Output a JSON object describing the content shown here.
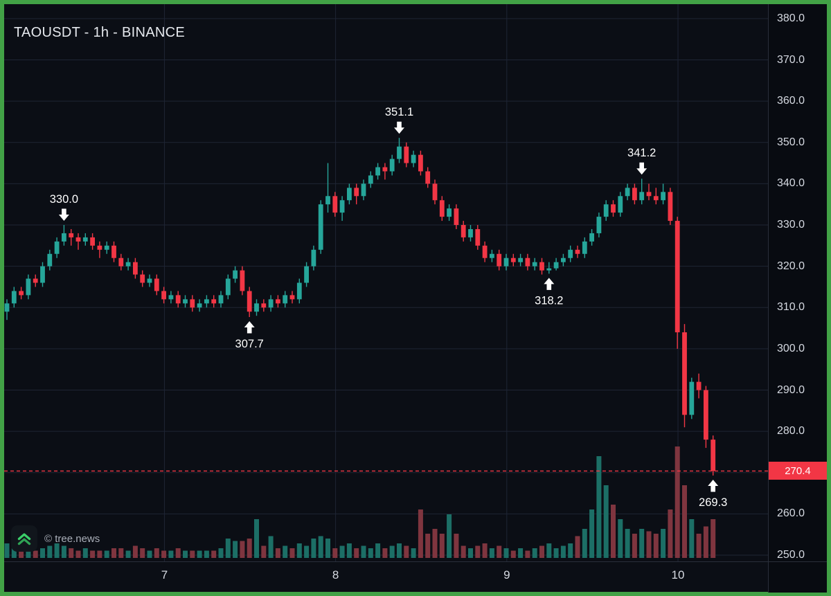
{
  "header": {
    "title": "TAOUSDT - 1h - BINANCE"
  },
  "watermark": {
    "text": "© tree.news",
    "logo": "tree-news-double-chevron-up-icon"
  },
  "colors": {
    "frame": "#42a246",
    "background": "#0b0e15",
    "grid": "#1f2535",
    "up": "#26a69a",
    "down": "#f23645",
    "vol_up": "#1c6f66",
    "vol_down": "#7f353f",
    "axis_text": "#d6dae2",
    "annotation": "#ffffff",
    "current_price_bg": "#f23645"
  },
  "price_axis": {
    "labels": [
      "380.0",
      "370.0",
      "360.0",
      "350.0",
      "340.0",
      "330.0",
      "320.0",
      "310.0",
      "300.0",
      "290.0",
      "280.0",
      "270.0",
      "260.0",
      "250.0"
    ],
    "current_price_label": "270.4"
  },
  "time_axis": {
    "labels": [
      {
        "text": "7",
        "day": 7
      },
      {
        "text": "8",
        "day": 8
      },
      {
        "text": "9",
        "day": 9
      },
      {
        "text": "10",
        "day": 10
      }
    ]
  },
  "annotations": [
    {
      "text": "330.0",
      "index": 8,
      "dir": "down"
    },
    {
      "text": "307.7",
      "index": 34,
      "dir": "up"
    },
    {
      "text": "351.1",
      "index": 55,
      "dir": "down"
    },
    {
      "text": "318.2",
      "index": 76,
      "dir": "up"
    },
    {
      "text": "341.2",
      "index": 89,
      "dir": "down"
    },
    {
      "text": "269.3",
      "index": 99,
      "dir": "up"
    }
  ],
  "chart_data": {
    "type": "candlestick",
    "title": "TAOUSDT - 1h - BINANCE",
    "symbol": "TAOUSDT",
    "interval": "1h",
    "exchange": "BINANCE",
    "price_axis_range": [
      250,
      380
    ],
    "x_day_start": 6.08,
    "candles_per_day": 24,
    "current_price": 270.4,
    "key_levels": {
      "high_1": 330.0,
      "low_1": 307.7,
      "high_2": 351.1,
      "low_2": 318.2,
      "high_3": 341.2,
      "low_3": 269.3
    },
    "candles": [
      [
        309,
        312,
        307,
        311
      ],
      [
        311,
        315,
        310,
        314
      ],
      [
        314,
        315,
        312,
        313
      ],
      [
        313,
        318,
        312,
        317
      ],
      [
        317,
        318,
        315,
        316
      ],
      [
        316,
        321,
        315,
        320
      ],
      [
        320,
        324,
        319,
        323
      ],
      [
        323,
        327,
        322,
        326
      ],
      [
        326,
        330,
        325,
        328
      ],
      [
        328,
        329,
        325,
        327
      ],
      [
        327,
        328,
        324,
        326
      ],
      [
        326,
        328,
        325,
        327
      ],
      [
        327,
        328,
        324,
        325
      ],
      [
        325,
        326,
        322,
        324
      ],
      [
        324,
        326,
        323,
        325
      ],
      [
        325,
        326,
        321,
        322
      ],
      [
        322,
        323,
        319,
        320
      ],
      [
        320,
        322,
        319,
        321
      ],
      [
        321,
        322,
        317,
        318
      ],
      [
        318,
        319,
        315,
        316
      ],
      [
        316,
        318,
        315,
        317
      ],
      [
        317,
        318,
        313,
        314
      ],
      [
        314,
        315,
        311,
        312
      ],
      [
        312,
        314,
        311,
        313
      ],
      [
        313,
        314,
        310,
        311
      ],
      [
        311,
        313,
        310,
        312
      ],
      [
        312,
        313,
        309,
        310
      ],
      [
        310,
        312,
        309,
        311
      ],
      [
        311,
        313,
        310,
        312
      ],
      [
        312,
        313,
        310,
        311
      ],
      [
        311,
        314,
        310,
        313
      ],
      [
        313,
        318,
        312,
        317
      ],
      [
        317,
        320,
        316,
        319
      ],
      [
        319,
        320,
        313,
        314
      ],
      [
        314,
        315,
        307.7,
        309
      ],
      [
        309,
        312,
        308,
        311
      ],
      [
        311,
        312,
        309,
        310
      ],
      [
        310,
        313,
        309,
        312
      ],
      [
        312,
        313,
        310,
        311
      ],
      [
        311,
        314,
        310,
        313
      ],
      [
        313,
        314,
        311,
        312
      ],
      [
        312,
        317,
        311,
        316
      ],
      [
        316,
        321,
        315,
        320
      ],
      [
        320,
        325,
        319,
        324
      ],
      [
        324,
        336,
        323,
        335
      ],
      [
        335,
        345,
        333,
        337
      ],
      [
        337,
        338,
        332,
        333
      ],
      [
        333,
        337,
        331,
        336
      ],
      [
        336,
        340,
        335,
        339
      ],
      [
        339,
        340,
        335,
        337
      ],
      [
        337,
        341,
        336,
        340
      ],
      [
        340,
        343,
        339,
        342
      ],
      [
        342,
        345,
        341,
        344
      ],
      [
        344,
        345,
        341,
        343
      ],
      [
        343,
        347,
        342,
        346
      ],
      [
        346,
        351.1,
        345,
        349
      ],
      [
        349,
        350,
        344,
        345
      ],
      [
        345,
        348,
        344,
        347
      ],
      [
        347,
        348,
        342,
        343
      ],
      [
        343,
        344,
        339,
        340
      ],
      [
        340,
        341,
        335,
        336
      ],
      [
        336,
        337,
        331,
        332
      ],
      [
        332,
        335,
        331,
        334
      ],
      [
        334,
        335,
        329,
        330
      ],
      [
        330,
        331,
        326,
        327
      ],
      [
        327,
        330,
        326,
        329
      ],
      [
        329,
        330,
        324,
        325
      ],
      [
        325,
        326,
        321,
        322
      ],
      [
        322,
        324,
        321,
        323
      ],
      [
        323,
        324,
        319,
        320
      ],
      [
        320,
        323,
        319,
        322
      ],
      [
        322,
        323,
        320,
        321
      ],
      [
        321,
        323,
        320,
        322
      ],
      [
        322,
        323,
        319,
        320
      ],
      [
        320,
        322,
        319,
        321
      ],
      [
        321,
        322,
        318,
        319
      ],
      [
        319,
        321,
        318.2,
        319.5
      ],
      [
        319.5,
        322,
        319,
        321
      ],
      [
        321,
        323,
        320,
        322
      ],
      [
        322,
        325,
        321,
        324
      ],
      [
        324,
        325,
        322,
        323
      ],
      [
        323,
        327,
        322,
        326
      ],
      [
        326,
        329,
        325,
        328
      ],
      [
        328,
        333,
        327,
        332
      ],
      [
        332,
        336,
        331,
        335
      ],
      [
        335,
        336,
        332,
        333
      ],
      [
        333,
        338,
        332,
        337
      ],
      [
        337,
        340,
        336,
        339
      ],
      [
        339,
        340,
        335,
        336
      ],
      [
        336,
        341.2,
        335,
        338
      ],
      [
        338,
        340,
        336,
        337
      ],
      [
        337,
        339,
        335,
        336
      ],
      [
        336,
        340,
        335,
        338
      ],
      [
        338,
        339,
        330,
        331
      ],
      [
        331,
        332,
        300,
        304
      ],
      [
        304,
        306,
        281,
        284
      ],
      [
        284,
        293,
        283,
        292
      ],
      [
        292,
        294,
        288,
        290
      ],
      [
        290,
        291,
        276,
        278
      ],
      [
        278,
        279,
        269.3,
        270.4
      ]
    ],
    "volumes": [
      6,
      4,
      3,
      4,
      3,
      4,
      5,
      6,
      5,
      4,
      3,
      4,
      3,
      3,
      3,
      4,
      4,
      3,
      5,
      4,
      3,
      4,
      3,
      3,
      4,
      3,
      3,
      3,
      3,
      3,
      4,
      8,
      7,
      7,
      8,
      16,
      5,
      9,
      4,
      5,
      4,
      6,
      5,
      8,
      9,
      8,
      4,
      5,
      6,
      4,
      5,
      4,
      6,
      4,
      5,
      6,
      5,
      4,
      20,
      10,
      12,
      10,
      18,
      10,
      5,
      4,
      5,
      6,
      4,
      5,
      4,
      3,
      4,
      3,
      4,
      5,
      6,
      4,
      5,
      6,
      9,
      12,
      20,
      42,
      30,
      22,
      16,
      12,
      10,
      12,
      11,
      10,
      12,
      20,
      46,
      30,
      16,
      10,
      13,
      16
    ]
  }
}
